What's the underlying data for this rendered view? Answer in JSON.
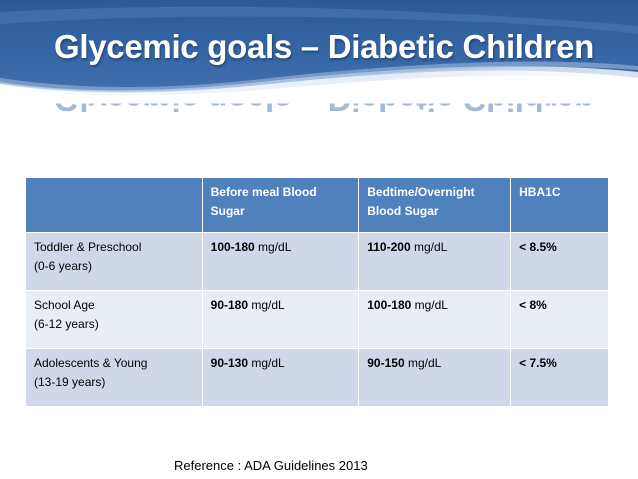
{
  "title": "Glycemic goals – Diabetic Children",
  "table": {
    "headers": [
      "",
      "Before meal Blood Sugar",
      "Bedtime/Overnight Blood Sugar",
      "HBA1C"
    ],
    "rows": [
      {
        "group": "Toddler & Preschool",
        "age": "(0-6 years)",
        "before_meal": {
          "value": "100-180",
          "unit": " mg/dL"
        },
        "bedtime": {
          "value": "110-200",
          "unit": " mg/dL"
        },
        "hba1c": "< 8.5%"
      },
      {
        "group": "School Age",
        "age": "(6-12 years)",
        "before_meal": {
          "value": "90-180",
          "unit": " mg/dL"
        },
        "bedtime": {
          "value": "100-180",
          "unit": " mg/dL"
        },
        "hba1c": "< 8%"
      },
      {
        "group": "Adolescents & Young",
        "age": "(13-19 years)",
        "before_meal": {
          "value": "90-130",
          "unit": " mg/dL"
        },
        "bedtime": {
          "value": "90-150",
          "unit": " mg/dL"
        },
        "hba1c": "< 7.5%"
      }
    ]
  },
  "reference": "Reference : ADA Guidelines 2013",
  "colors": {
    "header_fill": "#4f81bd",
    "row_odd_fill": "#d0d8e8",
    "row_even_fill": "#e9edf4",
    "banner_dark": "#2d5c9a",
    "banner_light": "#c7d7ec"
  }
}
